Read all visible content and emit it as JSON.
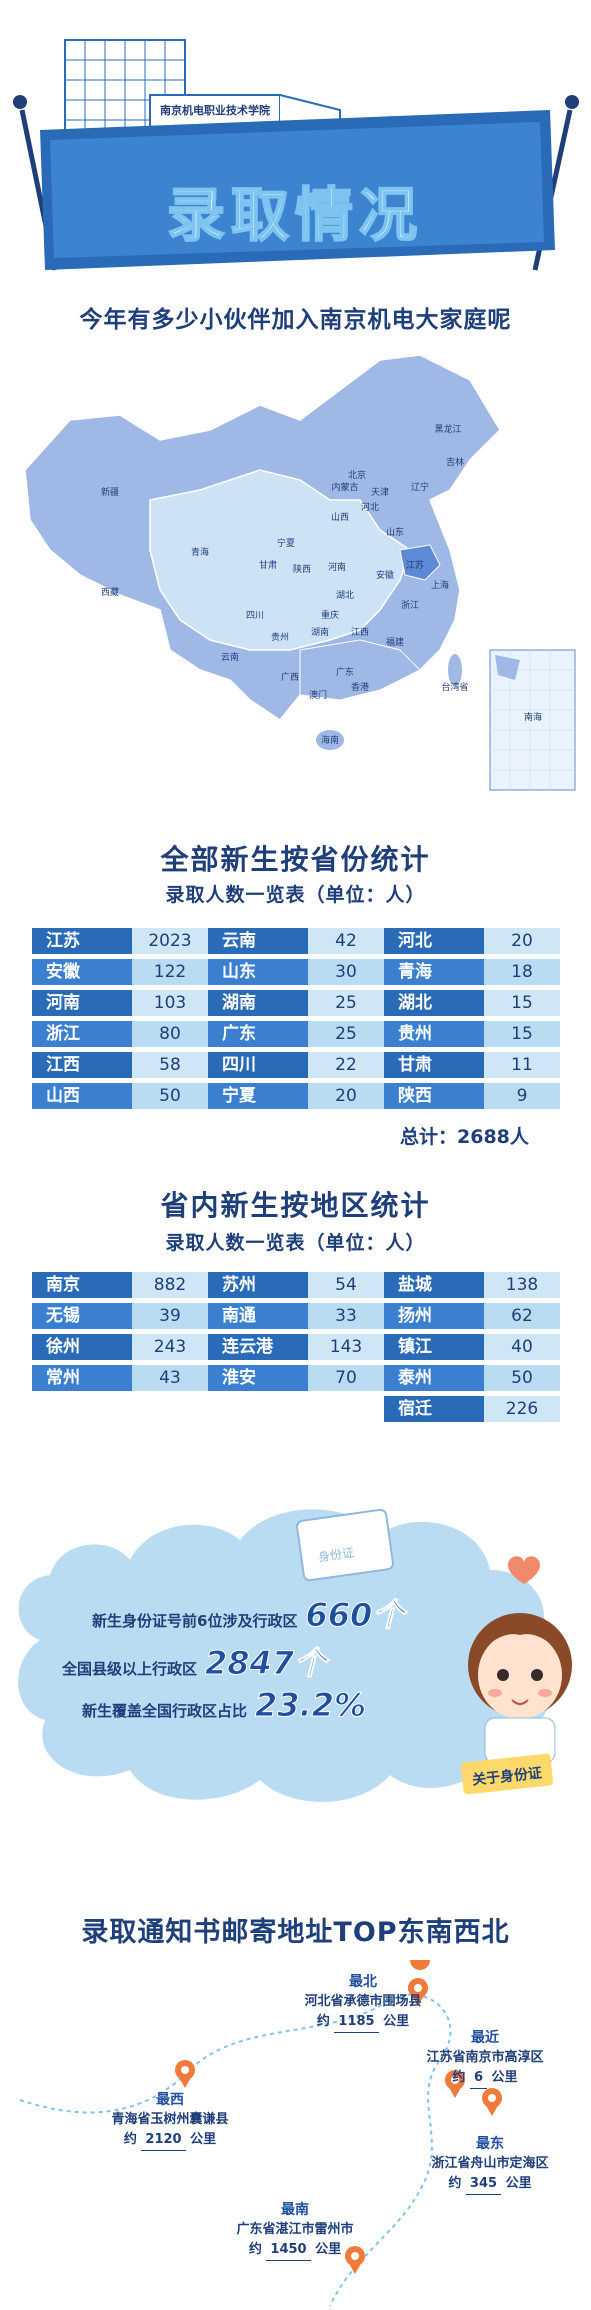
{
  "banner": {
    "title": "录取情况",
    "building_sign": "南京机电职业技术学院",
    "subtitle": "今年有多少小伙伴加入南京机电大家庭呢"
  },
  "map": {
    "provinces": [
      "黑龙江",
      "吉林",
      "辽宁",
      "内蒙古",
      "北京",
      "天津",
      "河北",
      "山西",
      "山东",
      "新疆",
      "西藏",
      "青海",
      "甘肃",
      "宁夏",
      "陕西",
      "河南",
      "江苏",
      "安徽",
      "湖北",
      "上海",
      "四川",
      "重庆",
      "浙江",
      "湖南",
      "江西",
      "贵州",
      "云南",
      "福建",
      "台湾省",
      "广西",
      "广东",
      "香港",
      "澳门",
      "海南",
      "南海"
    ]
  },
  "province_stats": {
    "title": "全部新生按省份统计",
    "subtitle": "录取人数一览表（单位：人）",
    "rows": [
      [
        {
          "name": "江苏",
          "value": "2023"
        },
        {
          "name": "云南",
          "value": "42"
        },
        {
          "name": "河北",
          "value": "20"
        }
      ],
      [
        {
          "name": "安徽",
          "value": "122"
        },
        {
          "name": "山东",
          "value": "30"
        },
        {
          "name": "青海",
          "value": "18"
        }
      ],
      [
        {
          "name": "河南",
          "value": "103"
        },
        {
          "name": "湖南",
          "value": "25"
        },
        {
          "name": "湖北",
          "value": "15"
        }
      ],
      [
        {
          "name": "浙江",
          "value": "80"
        },
        {
          "name": "广东",
          "value": "25"
        },
        {
          "name": "贵州",
          "value": "15"
        }
      ],
      [
        {
          "name": "江西",
          "value": "58"
        },
        {
          "name": "四川",
          "value": "22"
        },
        {
          "name": "甘肃",
          "value": "11"
        }
      ],
      [
        {
          "name": "山西",
          "value": "50"
        },
        {
          "name": "宁夏",
          "value": "20"
        },
        {
          "name": "陕西",
          "value": "9"
        }
      ]
    ],
    "total": "总计：2688人"
  },
  "region_stats": {
    "title": "省内新生按地区统计",
    "subtitle": "录取人数一览表（单位：人）",
    "rows": [
      [
        {
          "name": "南京",
          "value": "882"
        },
        {
          "name": "苏州",
          "value": "54"
        },
        {
          "name": "盐城",
          "value": "138"
        }
      ],
      [
        {
          "name": "无锡",
          "value": "39"
        },
        {
          "name": "南通",
          "value": "33"
        },
        {
          "name": "扬州",
          "value": "62"
        }
      ],
      [
        {
          "name": "徐州",
          "value": "243"
        },
        {
          "name": "连云港",
          "value": "143"
        },
        {
          "name": "镇江",
          "value": "40"
        }
      ],
      [
        {
          "name": "常州",
          "value": "43"
        },
        {
          "name": "淮安",
          "value": "70"
        },
        {
          "name": "泰州",
          "value": "50"
        }
      ],
      [
        null,
        null,
        {
          "name": "宿迁",
          "value": "226"
        }
      ]
    ]
  },
  "id_facts": {
    "card_label": "身份证",
    "badge": "关于身份证",
    "items": [
      {
        "label": "新生身份证号前6位涉及行政区",
        "number": "660个"
      },
      {
        "label": "全国县级以上行政区",
        "number": "2847个"
      },
      {
        "label": "新生覆盖全国行政区占比",
        "number": "23.2%"
      }
    ]
  },
  "addresses": {
    "title": "录取通知书邮寄地址TOP东南西北",
    "items": [
      {
        "dir": "最北",
        "place": "河北省承德市围场县",
        "prefix": "约",
        "dist": "1185",
        "unit": "公里"
      },
      {
        "dir": "最近",
        "place": "江苏省南京市高淳区",
        "prefix": "约",
        "dist": "6",
        "unit": "公里"
      },
      {
        "dir": "最西",
        "place": "青海省玉树州囊谦县",
        "prefix": "约",
        "dist": "2120",
        "unit": "公里"
      },
      {
        "dir": "最东",
        "place": "浙江省舟山市定海区",
        "prefix": "约",
        "dist": "345",
        "unit": "公里"
      },
      {
        "dir": "最南",
        "place": "广东省湛江市雷州市",
        "prefix": "约",
        "dist": "1450",
        "unit": "公里"
      }
    ]
  },
  "colors": {
    "navy": "#1f3f7a",
    "blue": "#2a6bb8",
    "light_cell": "#cfe6f7",
    "banner": "#2a6bb8",
    "cloud": "#b9dcf2",
    "pin": "#f07a3a"
  }
}
